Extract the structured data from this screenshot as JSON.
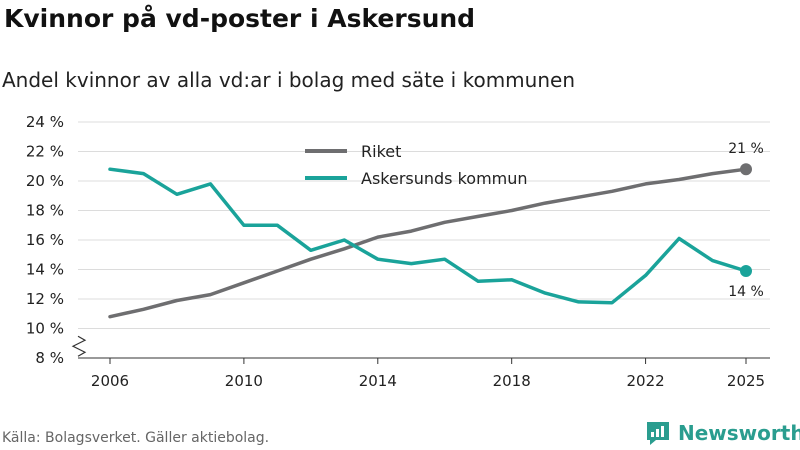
{
  "title": "Kvinnor på vd-poster i Askersund",
  "subtitle": "Andel kvinnor av alla vd:ar i bolag med säte i kommunen",
  "footer": "Källa: Bolagsverket. Gäller aktiebolag.",
  "brand": "Newsworthy",
  "colors": {
    "riket": "#6e6e70",
    "askersund": "#1aa39a",
    "grid": "#dcdcdc",
    "brand": "#2a9d8f"
  },
  "chart_data": {
    "type": "line",
    "title": "Kvinnor på vd-poster i Askersund",
    "subtitle": "Andel kvinnor av alla vd:ar i bolag med säte i kommunen",
    "xlabel": "",
    "ylabel": "",
    "xlim": [
      2006,
      2025
    ],
    "ylim": [
      8,
      24
    ],
    "x_ticks": [
      2006,
      2010,
      2014,
      2018,
      2022,
      2025
    ],
    "x_tick_labels": [
      "2006",
      "2010",
      "2014",
      "2018",
      "2022",
      "2025"
    ],
    "y_ticks": [
      8,
      10,
      12,
      14,
      16,
      18,
      20,
      22,
      24
    ],
    "y_tick_labels": [
      "8 %",
      "10 %",
      "12 %",
      "14 %",
      "16 %",
      "18 %",
      "20 %",
      "22 %",
      "24 %"
    ],
    "grid": true,
    "axis_break": true,
    "legend_position": "top-center",
    "x": [
      2006,
      2007,
      2008,
      2009,
      2010,
      2011,
      2012,
      2013,
      2014,
      2015,
      2016,
      2017,
      2018,
      2019,
      2020,
      2021,
      2022,
      2023,
      2024,
      2025
    ],
    "series": [
      {
        "name": "Riket",
        "values": [
          10.8,
          11.3,
          11.9,
          12.3,
          13.1,
          13.9,
          14.7,
          15.4,
          16.2,
          16.6,
          17.2,
          17.6,
          18.0,
          18.5,
          18.9,
          19.3,
          19.8,
          20.1,
          20.5,
          20.8
        ],
        "end_label": "21 %"
      },
      {
        "name": "Askersunds kommun",
        "values": [
          20.8,
          20.5,
          19.1,
          19.8,
          17.0,
          17.0,
          15.3,
          16.0,
          14.7,
          14.4,
          14.7,
          13.2,
          13.3,
          12.4,
          11.8,
          11.75,
          13.6,
          16.1,
          14.6,
          13.9
        ],
        "end_label": "14 %"
      }
    ]
  }
}
